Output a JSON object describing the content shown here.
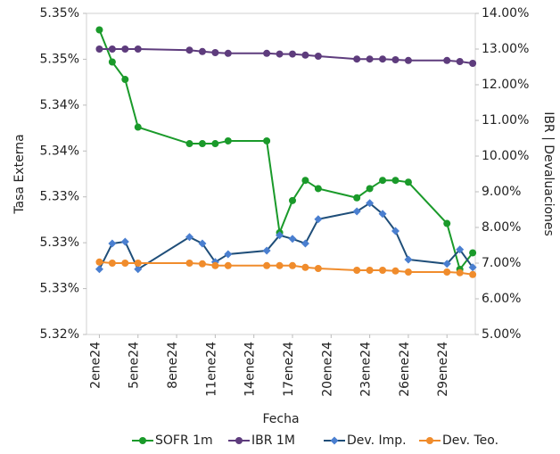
{
  "chart_data": {
    "type": "line",
    "x_label": "Fecha",
    "y_label": "Tasa Externa",
    "y2_label": "IBR | Devaluaciones",
    "x": [
      2,
      3,
      4,
      5,
      9,
      10,
      11,
      12,
      15,
      16,
      17,
      18,
      19,
      22,
      23,
      24,
      25,
      26,
      29,
      30,
      31
    ],
    "xlim": [
      1,
      31.2
    ],
    "xticks": [
      {
        "value": 2,
        "label": "2ene24"
      },
      {
        "value": 5,
        "label": "5ene24"
      },
      {
        "value": 8,
        "label": "8ene24"
      },
      {
        "value": 11,
        "label": "11ene24"
      },
      {
        "value": 14,
        "label": "14ene24"
      },
      {
        "value": 17,
        "label": "17ene24"
      },
      {
        "value": 20,
        "label": "20ene24"
      },
      {
        "value": 23,
        "label": "23ene24"
      },
      {
        "value": 26,
        "label": "26ene24"
      },
      {
        "value": 29,
        "label": "29ene24"
      }
    ],
    "ylim": [
      5.32,
      5.355
    ],
    "yticks": [
      {
        "value": 5.32,
        "label": "5.32%"
      },
      {
        "value": 5.325,
        "label": "5.33%"
      },
      {
        "value": 5.33,
        "label": "5.33%"
      },
      {
        "value": 5.335,
        "label": "5.33%"
      },
      {
        "value": 5.34,
        "label": "5.34%"
      },
      {
        "value": 5.345,
        "label": "5.34%"
      },
      {
        "value": 5.35,
        "label": "5.35%"
      },
      {
        "value": 5.355,
        "label": "5.35%"
      }
    ],
    "y2lim": [
      5,
      14
    ],
    "y2ticks": [
      {
        "value": 5,
        "label": "5.00%"
      },
      {
        "value": 6,
        "label": "6.00%"
      },
      {
        "value": 7,
        "label": "7.00%"
      },
      {
        "value": 8,
        "label": "8.00%"
      },
      {
        "value": 9,
        "label": "9.00%"
      },
      {
        "value": 10,
        "label": "10.00%"
      },
      {
        "value": 11,
        "label": "11.00%"
      },
      {
        "value": 12,
        "label": "12.00%"
      },
      {
        "value": 13,
        "label": "13.00%"
      },
      {
        "value": 14,
        "label": "14.00%"
      }
    ],
    "grid": false,
    "legend": "bottom",
    "series": [
      {
        "name": "SOFR 1m",
        "color": "#1a9a2a",
        "marker": "circle",
        "values": [
          5.3532,
          5.3497,
          5.3478,
          5.3426,
          5.3408,
          5.3408,
          5.3408,
          5.3411,
          5.3411,
          5.3311,
          5.3346,
          5.3368,
          5.3359,
          5.3349,
          5.3359,
          5.3368,
          5.3368,
          5.3366,
          5.3321,
          5.3271,
          5.3289
        ]
      },
      {
        "name": "IBR 1M",
        "color": "#5e3c7d",
        "marker": "circle",
        "axis": "y2",
        "values": [
          13.0,
          13.0,
          13.0,
          13.0,
          12.97,
          12.93,
          12.9,
          12.88,
          12.88,
          12.86,
          12.86,
          12.83,
          12.8,
          12.72,
          12.72,
          12.72,
          12.7,
          12.68,
          12.68,
          12.65,
          12.6
        ]
      },
      {
        "name": "Dev. Imp.",
        "color": "#1f4e79",
        "marker": "diamond",
        "marker_color": "#4a7fd0",
        "axis": "y2",
        "values": [
          6.83,
          7.55,
          7.6,
          6.83,
          7.73,
          7.55,
          7.03,
          7.25,
          7.35,
          7.78,
          7.68,
          7.55,
          8.23,
          8.45,
          8.68,
          8.38,
          7.9,
          7.1,
          6.98,
          7.38,
          6.88
        ]
      },
      {
        "name": "Dev. Teo.",
        "color": "#f08c2c",
        "marker": "circle",
        "axis": "y2",
        "values": [
          7.03,
          7.0,
          7.0,
          7.0,
          7.0,
          6.98,
          6.93,
          6.93,
          6.93,
          6.93,
          6.93,
          6.88,
          6.85,
          6.8,
          6.8,
          6.8,
          6.78,
          6.75,
          6.75,
          6.73,
          6.68
        ]
      }
    ]
  }
}
